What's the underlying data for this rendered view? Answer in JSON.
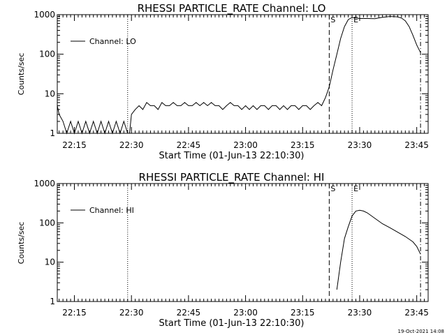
{
  "timestamp": "19-Oct-2021 14:08",
  "chart_data": [
    {
      "type": "line",
      "title": "RHESSI PARTICLE_RATE Channel: LO",
      "xlabel": "Start Time (01-Jun-13 22:10:30)",
      "ylabel": "Counts/sec",
      "x_ticks": [
        "22:15",
        "22:30",
        "22:45",
        "23:00",
        "23:15",
        "23:30",
        "23:45"
      ],
      "y_ticks": [
        "1",
        "10",
        "100",
        "1000"
      ],
      "ylim": [
        1,
        1000
      ],
      "yscale": "log",
      "legend": "Channel: LO",
      "legend_position": "top-left",
      "markers": [
        {
          "label": "S",
          "time": "23:22",
          "style": "dashed"
        },
        {
          "label": "E",
          "time": "23:28",
          "style": "dotted"
        }
      ],
      "vertical_lines": [
        {
          "time": "22:29",
          "style": "dotted"
        },
        {
          "time": "23:46",
          "style": "dashdot"
        }
      ],
      "series": [
        {
          "x": [
            "22:10:30",
            "22:11",
            "22:12",
            "22:13",
            "22:14",
            "22:15",
            "22:16",
            "22:17",
            "22:18",
            "22:19",
            "22:20",
            "22:21",
            "22:22",
            "22:23",
            "22:24",
            "22:25",
            "22:26",
            "22:27",
            "22:28",
            "22:29",
            "22:29:30",
            "22:30",
            "22:31",
            "22:32",
            "22:33",
            "22:34",
            "22:35",
            "22:36",
            "22:37",
            "22:38",
            "22:39",
            "22:40",
            "22:41",
            "22:42",
            "22:43",
            "22:44",
            "22:45",
            "22:46",
            "22:47",
            "22:48",
            "22:49",
            "22:50",
            "22:51",
            "22:52",
            "22:53",
            "22:54",
            "22:55",
            "22:56",
            "22:57",
            "22:58",
            "22:59",
            "23:00",
            "23:01",
            "23:02",
            "23:03",
            "23:04",
            "23:05",
            "23:06",
            "23:07",
            "23:08",
            "23:09",
            "23:10",
            "23:11",
            "23:12",
            "23:13",
            "23:14",
            "23:15",
            "23:16",
            "23:17",
            "23:18",
            "23:19",
            "23:20",
            "23:21",
            "23:22",
            "23:23",
            "23:24",
            "23:25",
            "23:26",
            "23:27",
            "23:28",
            "23:29",
            "23:30",
            "23:32",
            "23:34",
            "23:36",
            "23:38",
            "23:40",
            "23:41",
            "23:42",
            "23:43",
            "23:44",
            "23:45",
            "23:46"
          ],
          "y": [
            5,
            3,
            2,
            1,
            2,
            1,
            2,
            1,
            2,
            1,
            2,
            1,
            2,
            1,
            2,
            1,
            2,
            1,
            2,
            1,
            1,
            3,
            4,
            5,
            4,
            6,
            5,
            5,
            4,
            6,
            5,
            5,
            6,
            5,
            5,
            6,
            5,
            5,
            6,
            5,
            6,
            5,
            6,
            5,
            5,
            4,
            5,
            6,
            5,
            5,
            4,
            5,
            4,
            5,
            4,
            5,
            5,
            4,
            5,
            5,
            4,
            5,
            4,
            5,
            5,
            4,
            5,
            5,
            4,
            5,
            6,
            5,
            8,
            15,
            40,
            100,
            250,
            500,
            750,
            850,
            820,
            800,
            800,
            790,
            860,
            900,
            880,
            820,
            700,
            500,
            300,
            170,
            110
          ]
        }
      ]
    },
    {
      "type": "line",
      "title": "RHESSI PARTICLE_RATE Channel: HI",
      "xlabel": "Start Time (01-Jun-13 22:10:30)",
      "ylabel": "Counts/sec",
      "x_ticks": [
        "22:15",
        "22:30",
        "22:45",
        "23:00",
        "23:15",
        "23:30",
        "23:45"
      ],
      "y_ticks": [
        "1",
        "10",
        "100",
        "1000"
      ],
      "ylim": [
        1,
        1000
      ],
      "yscale": "log",
      "legend": "Channel: HI",
      "legend_position": "top-left",
      "markers": [
        {
          "label": "S",
          "time": "23:22",
          "style": "dashed"
        },
        {
          "label": "E",
          "time": "23:28",
          "style": "dotted"
        }
      ],
      "vertical_lines": [
        {
          "time": "22:29",
          "style": "dotted"
        },
        {
          "time": "23:46",
          "style": "dashdot"
        }
      ],
      "series": [
        {
          "x": [
            "23:24",
            "23:25",
            "23:26",
            "23:27",
            "23:28",
            "23:29",
            "23:30",
            "23:31",
            "23:32",
            "23:34",
            "23:36",
            "23:38",
            "23:40",
            "23:42",
            "23:44",
            "23:45",
            "23:46"
          ],
          "y": [
            2,
            10,
            40,
            80,
            150,
            200,
            210,
            200,
            180,
            130,
            95,
            75,
            58,
            45,
            33,
            25,
            16
          ]
        }
      ]
    }
  ]
}
